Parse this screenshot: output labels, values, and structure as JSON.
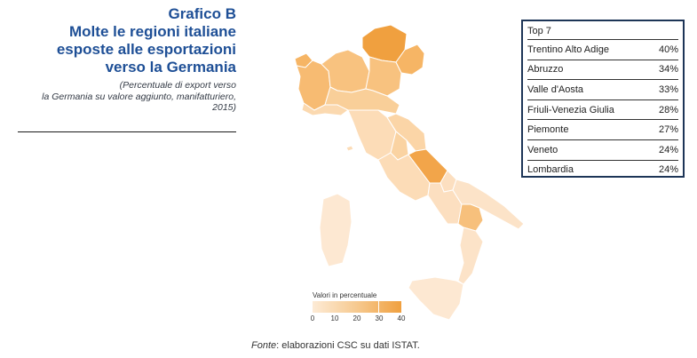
{
  "header": {
    "label": "Grafico B",
    "title_lines": [
      "Molte le regioni italiane",
      "esposte alle esportazioni",
      "verso la Germania"
    ],
    "note_lines": [
      "(Percentuale di export verso",
      "la Germania su valore aggiunto, manifatturiero,",
      "2015)"
    ]
  },
  "top7": {
    "title": "Top 7",
    "rows": [
      {
        "region": "Trentino Alto Adige",
        "value": "40%"
      },
      {
        "region": "Abruzzo",
        "value": "34%"
      },
      {
        "region": "Valle d'Aosta",
        "value": "33%"
      },
      {
        "region": "Friuli-Venezia Giulia",
        "value": "28%"
      },
      {
        "region": "Piemonte",
        "value": "27%"
      },
      {
        "region": "Veneto",
        "value": "24%"
      },
      {
        "region": "Lombardia",
        "value": "24%"
      }
    ]
  },
  "legend": {
    "title": "Valori in percentuale",
    "ticks": [
      "0",
      "10",
      "20",
      "30",
      "40"
    ],
    "min": 0,
    "max": 40,
    "color_low": "#fdebd6",
    "color_high": "#f0a03f"
  },
  "source": {
    "prefix": "Fonte",
    "text": ": elaborazioni CSC su dati ISTAT."
  },
  "colors": {
    "title": "#1e4f96",
    "box_border": "#1d3557",
    "scale": [
      "#fdebd6",
      "#fbd9b0",
      "#f8c788",
      "#f5b25f",
      "#f0a03f"
    ]
  }
}
